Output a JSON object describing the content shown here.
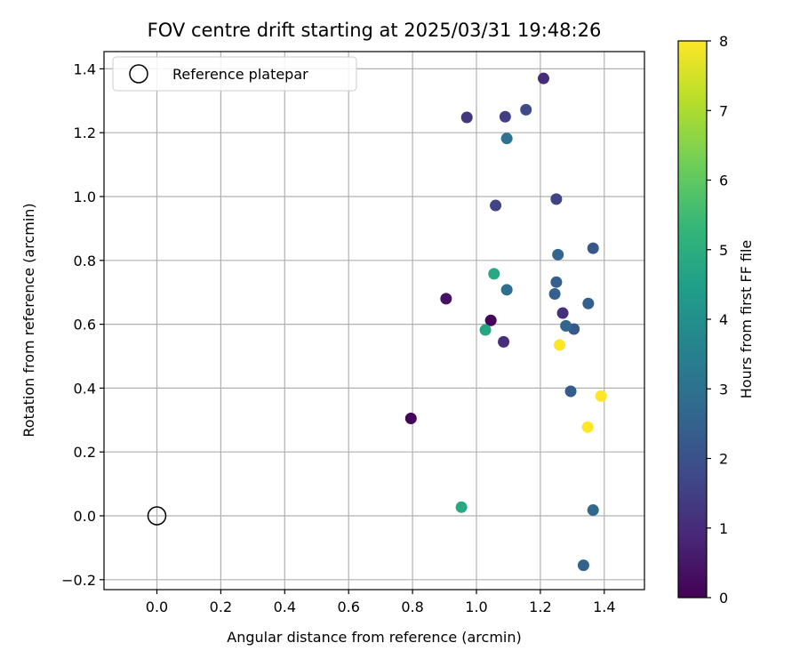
{
  "chart_data": {
    "type": "scatter",
    "title": "FOV centre drift starting at 2025/03/31 19:48:26",
    "xlabel": "Angular distance from reference (arcmin)",
    "ylabel": "Rotation from reference (arcmin)",
    "xlim": [
      -0.165,
      1.52
    ],
    "ylim": [
      -0.235,
      1.46
    ],
    "xticks": [
      0.0,
      0.2,
      0.4,
      0.6,
      0.8,
      1.0,
      1.2,
      1.4
    ],
    "xtick_labels": [
      "0.0",
      "0.2",
      "0.4",
      "0.6",
      "0.8",
      "1.0",
      "1.2",
      "1.4"
    ],
    "yticks": [
      -0.2,
      0.0,
      0.2,
      0.4,
      0.6,
      0.8,
      1.0,
      1.2,
      1.4
    ],
    "ytick_labels": [
      "−0.2",
      "0.0",
      "0.2",
      "0.4",
      "0.6",
      "0.8",
      "1.0",
      "1.2",
      "1.4"
    ],
    "grid": true,
    "legend": {
      "placement": "top-left",
      "entries": [
        {
          "label": "Reference platepar",
          "marker": "hollow-circle"
        }
      ]
    },
    "reference_point": {
      "x": 0.0,
      "y": 0.0
    },
    "colorbar": {
      "label": "Hours from first FF file",
      "range": [
        0,
        8
      ],
      "ticks": [
        0,
        1,
        2,
        3,
        4,
        5,
        6,
        7,
        8
      ],
      "tick_labels": [
        "0",
        "1",
        "2",
        "3",
        "4",
        "5",
        "6",
        "7",
        "8"
      ],
      "colormap": "viridis",
      "colormap_stops": [
        "#440154",
        "#482878",
        "#3e4a89",
        "#31688e",
        "#26828e",
        "#1f9e89",
        "#35b779",
        "#6ece58",
        "#b5de2b",
        "#fde725"
      ]
    },
    "points": [
      {
        "x": 0.795,
        "y": 0.305,
        "hours": 0.1
      },
      {
        "x": 1.045,
        "y": 0.612,
        "hours": 0.1
      },
      {
        "x": 0.905,
        "y": 0.68,
        "hours": 0.4
      },
      {
        "x": 1.21,
        "y": 1.37,
        "hours": 1.0
      },
      {
        "x": 1.27,
        "y": 0.635,
        "hours": 1.1
      },
      {
        "x": 1.085,
        "y": 0.545,
        "hours": 1.1
      },
      {
        "x": 0.97,
        "y": 1.248,
        "hours": 1.3
      },
      {
        "x": 1.09,
        "y": 1.25,
        "hours": 1.5
      },
      {
        "x": 1.06,
        "y": 0.972,
        "hours": 1.6
      },
      {
        "x": 1.25,
        "y": 0.992,
        "hours": 1.6
      },
      {
        "x": 1.155,
        "y": 1.272,
        "hours": 1.8
      },
      {
        "x": 1.365,
        "y": 0.838,
        "hours": 2.2
      },
      {
        "x": 1.305,
        "y": 0.585,
        "hours": 2.2
      },
      {
        "x": 1.295,
        "y": 0.39,
        "hours": 2.3
      },
      {
        "x": 1.25,
        "y": 0.732,
        "hours": 2.4
      },
      {
        "x": 1.245,
        "y": 0.695,
        "hours": 2.4
      },
      {
        "x": 1.35,
        "y": 0.665,
        "hours": 2.4
      },
      {
        "x": 1.335,
        "y": -0.155,
        "hours": 2.5
      },
      {
        "x": 1.255,
        "y": 0.818,
        "hours": 2.6
      },
      {
        "x": 1.28,
        "y": 0.595,
        "hours": 2.6
      },
      {
        "x": 1.365,
        "y": 0.018,
        "hours": 2.7
      },
      {
        "x": 1.095,
        "y": 0.708,
        "hours": 2.9
      },
      {
        "x": 1.095,
        "y": 1.182,
        "hours": 3.0
      },
      {
        "x": 1.028,
        "y": 0.582,
        "hours": 4.7
      },
      {
        "x": 0.953,
        "y": 0.027,
        "hours": 4.8
      },
      {
        "x": 1.055,
        "y": 0.758,
        "hours": 4.8
      },
      {
        "x": 1.26,
        "y": 0.535,
        "hours": 8.0
      },
      {
        "x": 1.348,
        "y": 0.278,
        "hours": 8.0
      },
      {
        "x": 1.39,
        "y": 0.375,
        "hours": 8.0
      }
    ]
  }
}
